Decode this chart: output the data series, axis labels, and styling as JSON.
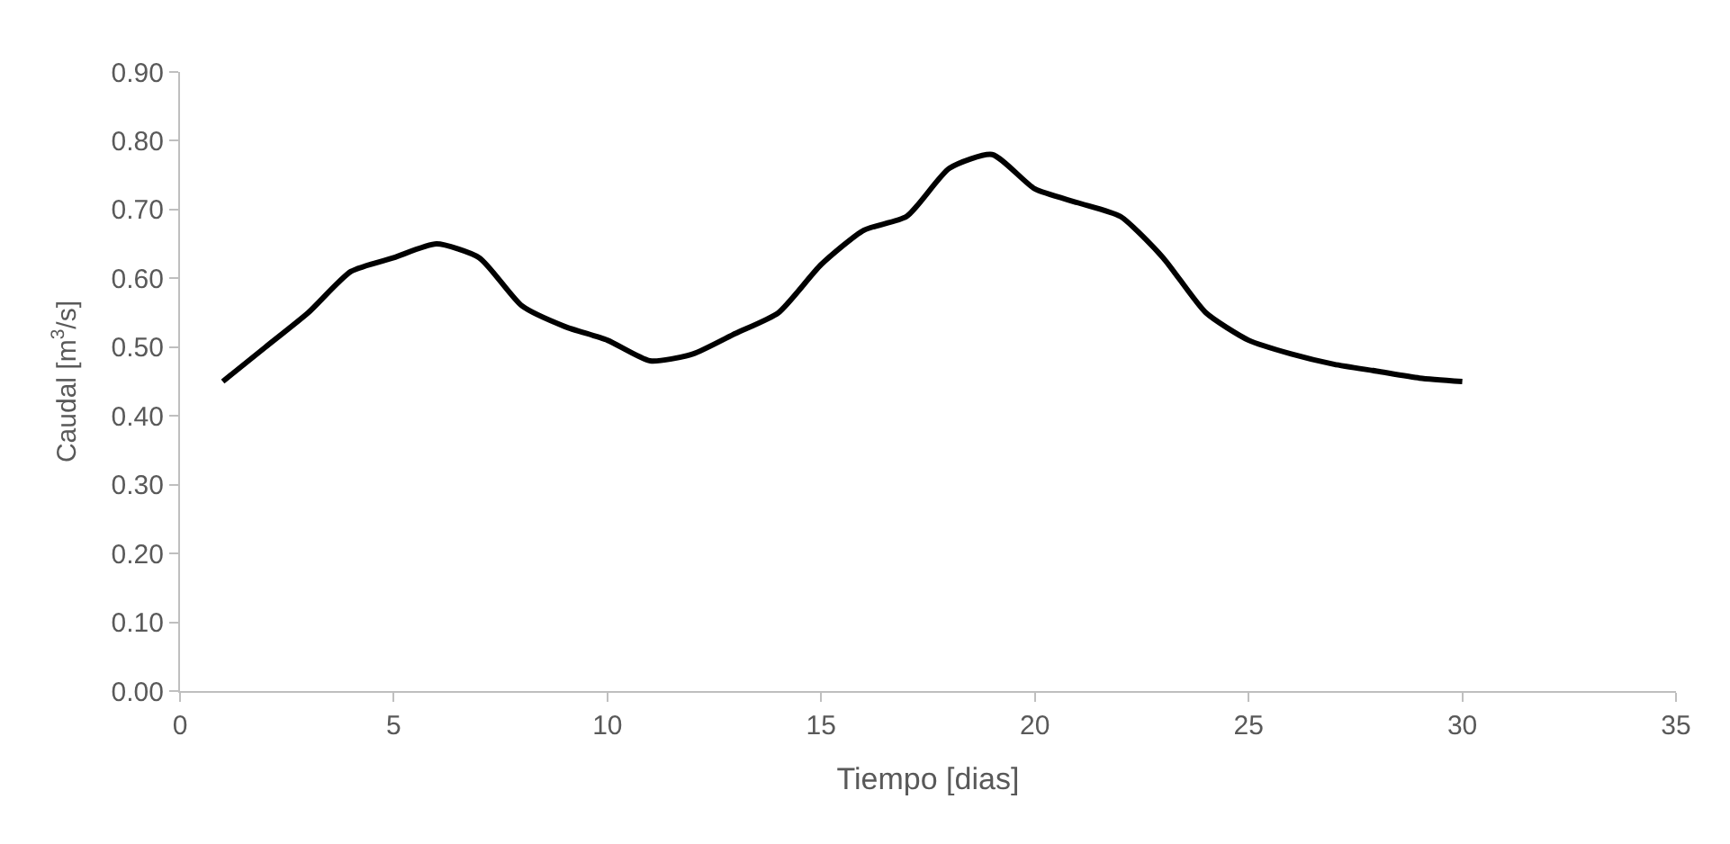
{
  "chart_data": {
    "type": "line",
    "xlabel": "Tiempo [dias]",
    "ylabel": "Caudal [m$^{3}$/s]",
    "x": [
      1,
      2,
      3,
      4,
      5,
      6,
      7,
      8,
      9,
      10,
      11,
      12,
      13,
      14,
      15,
      16,
      17,
      18,
      19,
      20,
      21,
      22,
      23,
      24,
      25,
      26,
      27,
      28,
      29,
      30
    ],
    "series": [
      {
        "color": "#000000",
        "values": [
          0.45,
          0.5,
          0.55,
          0.61,
          0.63,
          0.65,
          0.63,
          0.56,
          0.53,
          0.51,
          0.48,
          0.49,
          0.52,
          0.55,
          0.62,
          0.67,
          0.69,
          0.76,
          0.78,
          0.73,
          0.71,
          0.69,
          0.63,
          0.55,
          0.51,
          0.49,
          0.475,
          0.465,
          0.455,
          0.45
        ]
      }
    ],
    "xlim": [
      0,
      35
    ],
    "xticks": [
      0,
      5,
      10,
      15,
      20,
      25,
      30,
      35
    ],
    "ylim": [
      0,
      0.9
    ],
    "yticks": [
      {
        "value": 0,
        "label": "0.00"
      },
      {
        "value": 0.1,
        "label": "0.10"
      },
      {
        "value": 0.2,
        "label": "0.20"
      },
      {
        "value": 0.3,
        "label": "0.30"
      },
      {
        "value": 0.4,
        "label": "0.40"
      },
      {
        "value": 0.5,
        "label": "0.50"
      },
      {
        "value": 0.6,
        "label": "0.60"
      },
      {
        "value": 0.7,
        "label": "0.70"
      },
      {
        "value": 0.8,
        "label": "0.80"
      },
      {
        "value": 0.9,
        "label": "0.90"
      }
    ],
    "legend": false,
    "marker": "none",
    "line_style": "solid"
  }
}
